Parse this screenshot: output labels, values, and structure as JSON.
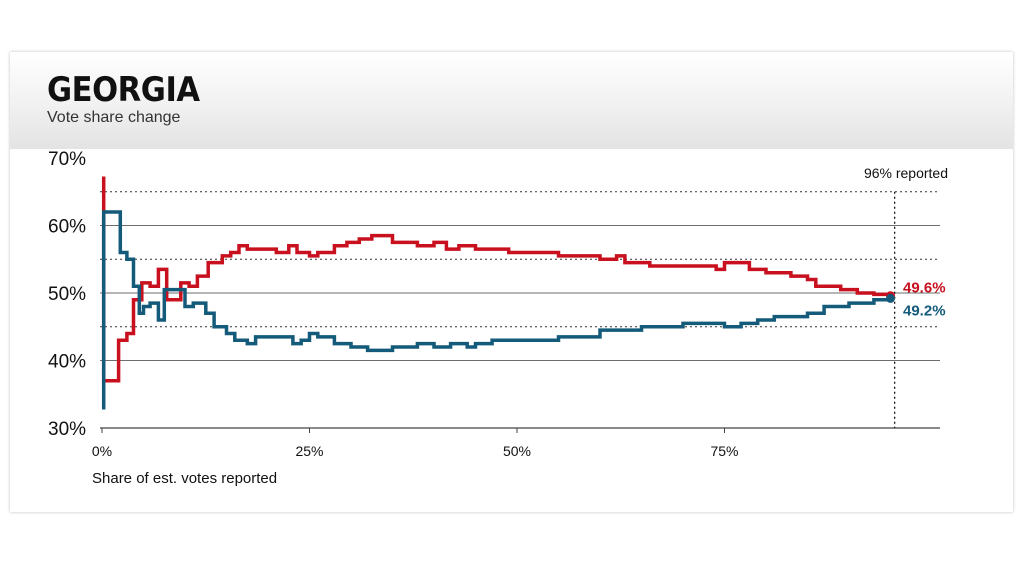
{
  "header": {
    "title": "GEORGIA",
    "subtitle": "Vote share change"
  },
  "colors": {
    "red_series": "#c8101e",
    "blue_series": "#145a7a",
    "gridline": "#6d6d6d"
  },
  "chart_data": {
    "type": "line",
    "title": "GEORGIA",
    "subtitle": "Vote share change",
    "xlabel": "Share of est. votes reported",
    "ylabel": "",
    "xlim": [
      0,
      100
    ],
    "ylim": [
      30,
      70
    ],
    "x_ticks": [
      0,
      25,
      50,
      75
    ],
    "x_tick_labels": [
      "0%",
      "25%",
      "50%",
      "75%"
    ],
    "y_ticks": [
      30,
      40,
      50,
      60,
      70
    ],
    "y_tick_labels": [
      "30%",
      "40%",
      "50%",
      "60%",
      "70%"
    ],
    "dotted_gridlines": [
      65,
      55,
      45
    ],
    "step_lines": true,
    "annotation": {
      "x": 95.5,
      "label": "96% reported"
    },
    "series": [
      {
        "color": "#c8101e",
        "end_label": "49.6%",
        "points": [
          [
            0,
            67
          ],
          [
            0.2,
            37
          ],
          [
            2,
            43
          ],
          [
            3,
            44
          ],
          [
            3.8,
            49
          ],
          [
            4.8,
            51.5
          ],
          [
            5.8,
            51
          ],
          [
            6.8,
            53.5
          ],
          [
            7.8,
            49
          ],
          [
            9.5,
            51.5
          ],
          [
            10.5,
            51
          ],
          [
            11.5,
            52.5
          ],
          [
            12.8,
            54.5
          ],
          [
            14.5,
            55.5
          ],
          [
            15.5,
            56
          ],
          [
            16.5,
            57
          ],
          [
            17.5,
            56.5
          ],
          [
            21,
            56
          ],
          [
            22.5,
            57
          ],
          [
            23.5,
            56
          ],
          [
            25,
            55.5
          ],
          [
            26,
            56
          ],
          [
            28,
            57
          ],
          [
            29.5,
            57.5
          ],
          [
            31,
            58
          ],
          [
            32.5,
            58.5
          ],
          [
            35,
            57.5
          ],
          [
            38,
            57
          ],
          [
            40,
            57.5
          ],
          [
            41.5,
            56.5
          ],
          [
            43,
            57
          ],
          [
            45,
            56.5
          ],
          [
            49,
            56
          ],
          [
            55,
            55.5
          ],
          [
            60,
            55
          ],
          [
            62,
            55.5
          ],
          [
            63,
            54.5
          ],
          [
            66,
            54
          ],
          [
            70,
            54
          ],
          [
            74,
            53.5
          ],
          [
            75,
            54.5
          ],
          [
            78,
            53.5
          ],
          [
            80,
            53
          ],
          [
            83,
            52.5
          ],
          [
            85,
            52
          ],
          [
            86,
            51
          ],
          [
            89,
            50.5
          ],
          [
            91,
            50
          ],
          [
            93,
            49.8
          ],
          [
            95,
            49.6
          ]
        ]
      },
      {
        "color": "#145a7a",
        "end_label": "49.2%",
        "points": [
          [
            0,
            33
          ],
          [
            0.2,
            62
          ],
          [
            2.2,
            56
          ],
          [
            3,
            55
          ],
          [
            3.8,
            51
          ],
          [
            4.5,
            47
          ],
          [
            5,
            48
          ],
          [
            5.8,
            48.5
          ],
          [
            6.8,
            46
          ],
          [
            7.5,
            50.5
          ],
          [
            10,
            48
          ],
          [
            11,
            48.5
          ],
          [
            12.5,
            47
          ],
          [
            13.5,
            45
          ],
          [
            15,
            44
          ],
          [
            16,
            43
          ],
          [
            17.5,
            42.5
          ],
          [
            18.5,
            43.5
          ],
          [
            22,
            43.5
          ],
          [
            23,
            42.5
          ],
          [
            24,
            43
          ],
          [
            25,
            44
          ],
          [
            26,
            43.5
          ],
          [
            28,
            42.5
          ],
          [
            30,
            42
          ],
          [
            32,
            41.5
          ],
          [
            35,
            42
          ],
          [
            38,
            42.5
          ],
          [
            40,
            42
          ],
          [
            42,
            42.5
          ],
          [
            44,
            42
          ],
          [
            45,
            42.5
          ],
          [
            47,
            43
          ],
          [
            50,
            43
          ],
          [
            55,
            43.5
          ],
          [
            60,
            44.5
          ],
          [
            65,
            45
          ],
          [
            70,
            45.5
          ],
          [
            75,
            45
          ],
          [
            77,
            45.5
          ],
          [
            79,
            46
          ],
          [
            81,
            46.5
          ],
          [
            85,
            47
          ],
          [
            87,
            48
          ],
          [
            90,
            48.5
          ],
          [
            93,
            49
          ],
          [
            95,
            49.2
          ]
        ]
      }
    ]
  }
}
